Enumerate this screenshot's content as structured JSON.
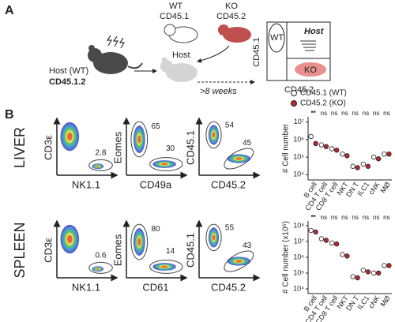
{
  "panel_a": {
    "label": "A",
    "host_label": "Host (WT)",
    "host_strain": "CD45.1.2",
    "wt_label": "WT",
    "wt_strain": "CD45.1",
    "ko_label": "KO",
    "ko_strain": "CD45.2",
    "recipient_label": "Host",
    "duration": ">8 weeks",
    "gate_y": "CD45.1",
    "gate_x": "CD45.2",
    "gate_wt": "WT",
    "gate_host": "Host",
    "gate_ko": "KO"
  },
  "panel_b": {
    "label": "B",
    "legend": [
      {
        "name": "CD45.1 (WT)",
        "color": "#ffffff"
      },
      {
        "name": "CD45.2 (KO)",
        "color": "#b8282e"
      }
    ],
    "flow_rows": [
      {
        "tissue": "LIVER",
        "plots": [
          {
            "y": "CD3ε",
            "x": "NK1.1",
            "gates": [
              2.8
            ]
          },
          {
            "y": "Eomes",
            "x": "CD49a",
            "gates": [
              65,
              30
            ]
          },
          {
            "y": "CD45.1",
            "x": "CD45.2",
            "gates": [
              54,
              45
            ]
          }
        ]
      },
      {
        "tissue": "SPLEEN",
        "plots": [
          {
            "y": "CD3ε",
            "x": "NK1.1",
            "gates": [
              0.6
            ]
          },
          {
            "y": "Eomes",
            "x": "CD61",
            "gates": [
              80,
              14
            ]
          },
          {
            "y": "CD45.1",
            "x": "CD45.2",
            "gates": [
              55,
              43
            ]
          }
        ]
      }
    ]
  },
  "chart_data": [
    {
      "type": "dot",
      "y_label": "# Cell number",
      "log_y": true,
      "categories": [
        "B cell",
        "CD4 T cell",
        "CD8 T cell",
        "NKT",
        "DN T",
        "ILC1",
        "cNK",
        "MØ"
      ],
      "significance": [
        "**",
        "ns",
        "ns",
        "ns",
        "ns",
        "ns",
        "ns",
        "ns"
      ],
      "series": [
        {
          "values": [
            1500000,
            500000,
            300000,
            150000,
            30000,
            40000,
            100000,
            150000
          ]
        },
        {
          "values": [
            600000,
            400000,
            250000,
            120000,
            25000,
            30000,
            80000,
            150000
          ]
        }
      ],
      "ylim": [
        5000,
        20000000
      ],
      "yticks": [
        {
          "value": 10000,
          "label": "10⁴"
        },
        {
          "value": 100000,
          "label": "10⁵"
        },
        {
          "value": 1000000,
          "label": "10⁶"
        },
        {
          "value": 10000000,
          "label": "10⁷"
        }
      ]
    },
    {
      "type": "dot",
      "y_label": "# Cell number (x10⁶)",
      "log_y": true,
      "categories": [
        "B cell",
        "CD4 T cell",
        "CD8 T cell",
        "NKT",
        "DN T",
        "ILC1",
        "cNK",
        "MØ"
      ],
      "significance": [
        "**",
        "ns",
        "ns",
        "ns",
        "ns",
        "ns",
        "ns",
        "ns"
      ],
      "series": [
        {
          "values": [
            50000000,
            15000000,
            8000000,
            1500000,
            60000,
            150000,
            100000,
            300000
          ]
        },
        {
          "values": [
            40000000,
            12000000,
            7000000,
            1200000,
            50000,
            120000,
            100000,
            300000
          ]
        }
      ],
      "ylim": [
        5000,
        200000000
      ],
      "yticks": [
        {
          "value": 10000,
          "label": "10⁴"
        },
        {
          "value": 100000,
          "label": "10⁵"
        },
        {
          "value": 1000000,
          "label": "10⁶"
        },
        {
          "value": 10000000,
          "label": "10⁷"
        },
        {
          "value": 100000000,
          "label": "10⁸"
        }
      ]
    }
  ]
}
